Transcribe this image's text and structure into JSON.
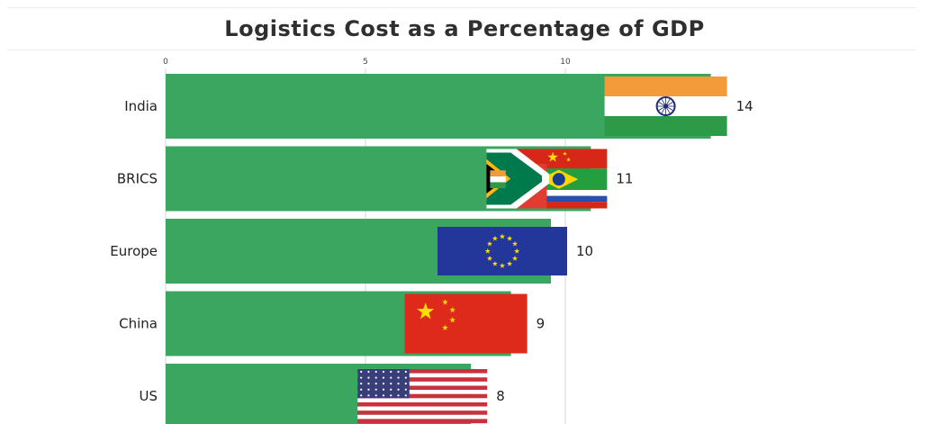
{
  "chart_data": {
    "type": "bar",
    "orientation": "horizontal",
    "title": "Logistics Cost as a Percentage of GDP",
    "xlabel": "",
    "ylabel": "",
    "xlim": [
      0,
      19
    ],
    "xticks": [
      0,
      5,
      10
    ],
    "grid": true,
    "categories": [
      "India",
      "BRICS",
      "Europe",
      "China",
      "US"
    ],
    "values": [
      14,
      11,
      10,
      9,
      8
    ],
    "flags": [
      "india-flag",
      "brics-flag",
      "eu-flag",
      "china-flag",
      "us-flag"
    ],
    "colors": {
      "bar": "#3aa660",
      "grid": "#d6d6d6",
      "text": "#222222"
    }
  }
}
